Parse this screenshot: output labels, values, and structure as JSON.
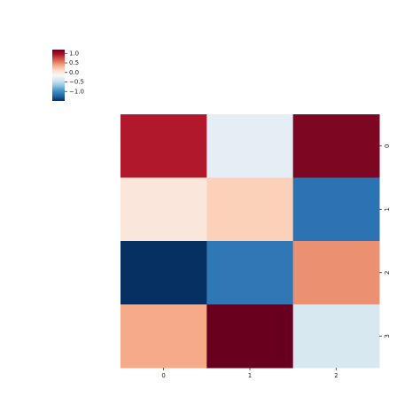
{
  "chart_data": {
    "type": "heatmap",
    "x_categories": [
      "0",
      "1",
      "2"
    ],
    "y_categories": [
      "0",
      "1",
      "2",
      "3"
    ],
    "values": [
      [
        0.93,
        -0.28,
        1.12
      ],
      [
        0.01,
        0.17,
        -1.15
      ],
      [
        -1.5,
        -1.12,
        0.47
      ],
      [
        0.36,
        1.2,
        -0.37
      ]
    ],
    "colormap": "RdBu_r",
    "colormap_colors": [
      "#053061",
      "#2166ac",
      "#4393c3",
      "#92c5de",
      "#d1e5f0",
      "#f7f7f7",
      "#fddbc7",
      "#f4a582",
      "#d6604d",
      "#b2182b",
      "#67001f"
    ],
    "clim": [
      -1.5,
      1.2
    ],
    "cbar_ticks": [
      {
        "value": 1.0,
        "label": "1.0"
      },
      0.5,
      {
        "value": 0.0,
        "label": "0.0"
      },
      {
        "value": -0.5,
        "label": "−0.5"
      },
      {
        "value": -1.0,
        "label": "−1.0"
      }
    ]
  }
}
